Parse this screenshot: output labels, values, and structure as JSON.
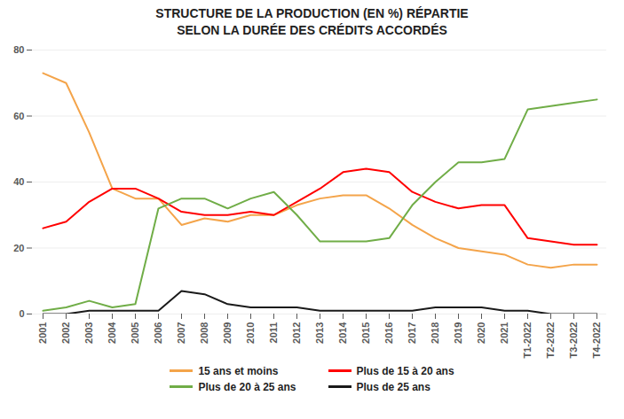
{
  "chart_data": {
    "type": "line",
    "title": "STRUCTURE DE LA PRODUCTION (EN %) RÉPARTIE\nSELON LA DURÉE DES CRÉDITS ACCORDÉS",
    "categories": [
      "2001",
      "2002",
      "2003",
      "2004",
      "2005",
      "2006",
      "2007",
      "2008",
      "2009",
      "2010",
      "2011",
      "2012",
      "2013",
      "2014",
      "2015",
      "2016",
      "2017",
      "2018",
      "2019",
      "2020",
      "2021",
      "T1-2022",
      "T2-2022",
      "T3-2022",
      "T4-2022"
    ],
    "series": [
      {
        "name": "15 ans et moins",
        "color": "#F4A44A",
        "values": [
          73,
          70,
          55,
          38,
          35,
          35,
          27,
          29,
          28,
          30,
          30,
          33,
          35,
          36,
          36,
          32,
          27,
          23,
          20,
          19,
          18,
          15,
          14,
          15,
          15
        ]
      },
      {
        "name": "Plus de 15 à 20 ans",
        "color": "#FF0000",
        "values": [
          26,
          28,
          34,
          38,
          38,
          35,
          31,
          30,
          30,
          31,
          30,
          34,
          38,
          43,
          44,
          43,
          37,
          34,
          32,
          33,
          33,
          23,
          22,
          21,
          21
        ]
      },
      {
        "name": "Plus de 20 à 25 ans",
        "color": "#70AD47",
        "values": [
          1,
          2,
          4,
          2,
          3,
          32,
          35,
          35,
          32,
          35,
          37,
          30,
          22,
          22,
          22,
          23,
          33,
          40,
          46,
          46,
          47,
          62,
          63,
          64,
          65
        ]
      },
      {
        "name": "Plus de 25 ans",
        "color": "#1A1A1A",
        "values": [
          0,
          0,
          1,
          1,
          1,
          1,
          7,
          6,
          3,
          2,
          2,
          2,
          1,
          1,
          1,
          1,
          1,
          2,
          2,
          2,
          1,
          1,
          0,
          0,
          0
        ]
      }
    ],
    "ylim": [
      0,
      80
    ],
    "yticks": [
      0,
      20,
      40,
      60,
      80
    ],
    "grid": true,
    "legend": "bottom"
  }
}
